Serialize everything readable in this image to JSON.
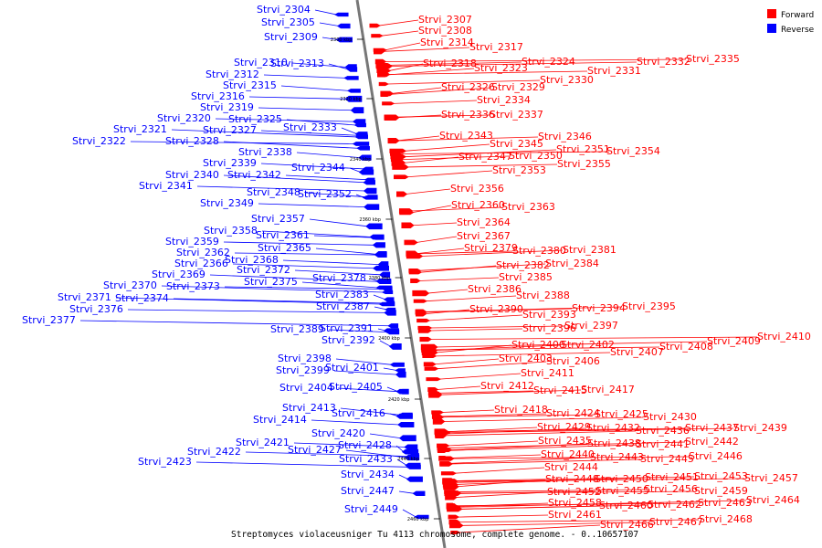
{
  "legend": [
    {
      "label": "Forward",
      "color": "#ff0000"
    },
    {
      "label": "Reverse",
      "color": "#0000ff"
    }
  ],
  "caption": "Streptomyces violaceusniger Tu 4113 chromosome, complete genome. - 0..10657107",
  "scale_ticks": [
    "2300 kbp",
    "2320 kbp",
    "2340 kbp",
    "2360 kbp",
    "2380 kbp",
    "2400 kbp",
    "2420 kbp",
    "2440 kbp",
    "2460 kbp"
  ],
  "reverse_genes": [
    "Strvi_2304",
    "Strvi_2305",
    "Strvi_2309",
    "Strvi_2310",
    "Strvi_2313",
    "Strvi_2312",
    "Strvi_2315",
    "Strvi_2316",
    "Strvi_2319",
    "Strvi_2320",
    "Strvi_2325",
    "Strvi_2321",
    "Strvi_2327",
    "Strvi_2333",
    "Strvi_2322",
    "Strvi_2328",
    "Strvi_2338",
    "Strvi_2339",
    "Strvi_2342",
    "Strvi_2344",
    "Strvi_2340",
    "Strvi_2341",
    "Strvi_2348",
    "Strvi_2352",
    "Strvi_2349",
    "Strvi_2357",
    "Strvi_2358",
    "Strvi_2361",
    "Strvi_2359",
    "Strvi_2365",
    "Strvi_2362",
    "Strvi_2368",
    "Strvi_2366",
    "Strvi_2372",
    "Strvi_2369",
    "Strvi_2378",
    "Strvi_2375",
    "Strvi_2370",
    "Strvi_2373",
    "Strvi_2371",
    "Strvi_2374",
    "Strvi_2383",
    "Strvi_2376",
    "Strvi_2387",
    "Strvi_2377",
    "Strvi_2389",
    "Strvi_2391",
    "Strvi_2392",
    "Strvi_2398",
    "Strvi_2399",
    "Strvi_2401",
    "Strvi_2404",
    "Strvi_2405",
    "Strvi_2413",
    "Strvi_2416",
    "Strvi_2414",
    "Strvi_2420",
    "Strvi_2421",
    "Strvi_2428",
    "Strvi_2427",
    "Strvi_2422",
    "Strvi_2423",
    "Strvi_2433",
    "Strvi_2434",
    "Strvi_2447",
    "Strvi_2449"
  ],
  "forward_genes": [
    "Strvi_2307",
    "Strvi_2308",
    "Strvi_2314",
    "Strvi_2317",
    "Strvi_2324",
    "Strvi_2318",
    "Strvi_2323",
    "Strvi_2332",
    "Strvi_2335",
    "Strvi_2331",
    "Strvi_2330",
    "Strvi_2326",
    "Strvi_2329",
    "Strvi_2334",
    "Strvi_2336",
    "Strvi_2337",
    "Strvi_2346",
    "Strvi_2343",
    "Strvi_2345",
    "Strvi_2351",
    "Strvi_2354",
    "Strvi_2347",
    "Strvi_2350",
    "Strvi_2355",
    "Strvi_2353",
    "Strvi_2356",
    "Strvi_2360",
    "Strvi_2363",
    "Strvi_2364",
    "Strvi_2367",
    "Strvi_2379",
    "Strvi_2380",
    "Strvi_2381",
    "Strvi_2382",
    "Strvi_2384",
    "Strvi_2385",
    "Strvi_2386",
    "Strvi_2388",
    "Strvi_2390",
    "Strvi_2394",
    "Strvi_2395",
    "Strvi_2393",
    "Strvi_2396",
    "Strvi_2397",
    "Strvi_2410",
    "Strvi_2409",
    "Strvi_2408",
    "Strvi_2400",
    "Strvi_2402",
    "Strvi_2407",
    "Strvi_2403",
    "Strvi_2406",
    "Strvi_2411",
    "Strvi_2412",
    "Strvi_2415",
    "Strvi_2417",
    "Strvi_2418",
    "Strvi_2424",
    "Strvi_2425",
    "Strvi_2430",
    "Strvi_2429",
    "Strvi_2432",
    "Strvi_2436",
    "Strvi_2437",
    "Strvi_2439",
    "Strvi_2435",
    "Strvi_2438",
    "Strvi_2441",
    "Strvi_2442",
    "Strvi_2440",
    "Strvi_2443",
    "Strvi_2445",
    "Strvi_2446",
    "Strvi_2444",
    "Strvi_2448",
    "Strvi_2450",
    "Strvi_2451",
    "Strvi_2453",
    "Strvi_2457",
    "Strvi_2452",
    "Strvi_2455",
    "Strvi_2456",
    "Strvi_2459",
    "Strvi_2458",
    "Strvi_2460",
    "Strvi_2462",
    "Strvi_2463",
    "Strvi_2464",
    "Strvi_2461",
    "Strvi_2466",
    "Strvi_2467",
    "Strvi_2468"
  ]
}
